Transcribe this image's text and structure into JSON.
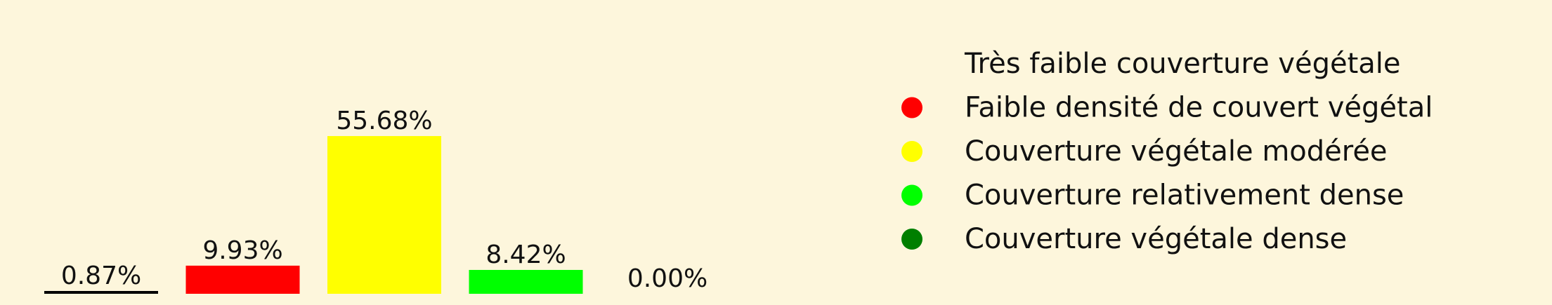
{
  "chart_data": {
    "type": "bar",
    "categories": [
      "Très faible couverture végétale",
      "Faible densité de couvert végétal",
      "Couverture végétale modérée",
      "Couverture relativement dense",
      "Couverture végétale dense"
    ],
    "values": [
      0.87,
      9.93,
      55.68,
      8.42,
      0.0
    ],
    "value_labels": [
      "0.87%",
      "9.93%",
      "55.68%",
      "8.42%",
      "0.00%"
    ],
    "colors": [
      "#000000",
      "#ff0000",
      "#ffff00",
      "#00ff00",
      "#007f00"
    ],
    "title": "",
    "xlabel": "",
    "ylabel": "",
    "axes_visible": false,
    "grid": false,
    "legend_position": "right",
    "legend_markers": [
      "none",
      "circle",
      "circle",
      "circle",
      "circle"
    ]
  }
}
